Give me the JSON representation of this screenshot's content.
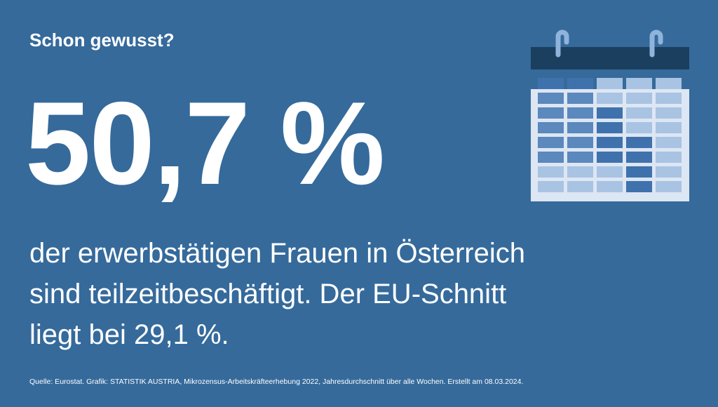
{
  "kicker": "Schon gewusst?",
  "headline": "50,7 %",
  "body": [
    "der erwerbstätigen Frauen in Österreich",
    "sind teilzeitbeschäftigt. Der EU-Schnitt",
    "liegt bei 29,1 %."
  ],
  "source": "Quelle: Eurostat. Grafik: STATISTIK AUSTRIA, Mikrozensus-Arbeitskräfteerhebung 2022, Jahresdurchschnitt über alle Wochen. Erstellt am 08.03.2024."
}
